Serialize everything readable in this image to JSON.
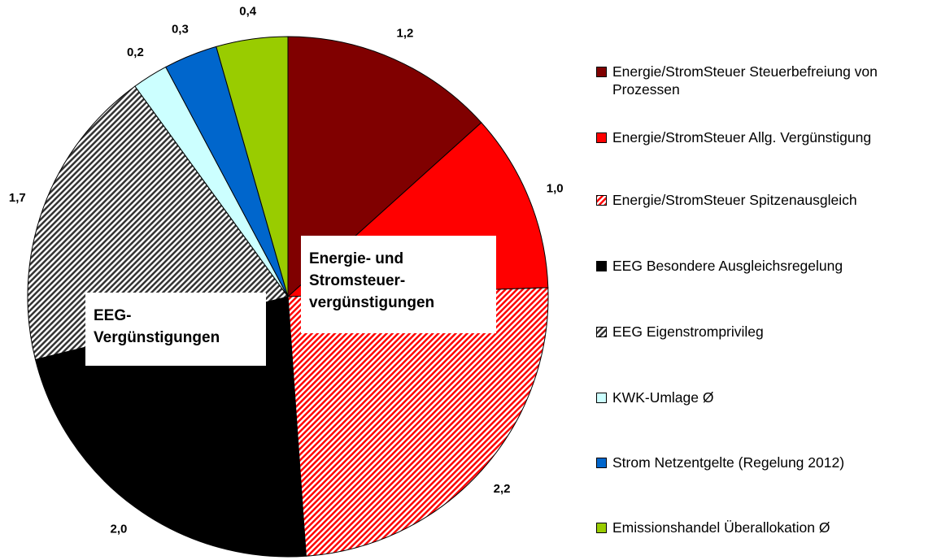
{
  "chart_data": {
    "type": "pie",
    "categories": [
      "Energie/StromSteuer Steuerbefreiung von Prozessen",
      "Energie/StromSteuer Allg. Vergünstigung",
      "Energie/StromSteuer Spitzenausgleich",
      "EEG Besondere Ausgleichsregelung",
      "EEG Eigenstromprivileg",
      "KWK-Umlage Ø",
      "Strom Netzentgelte (Regelung 2012)",
      "Emissionshandel Überallokation Ø"
    ],
    "values": [
      1.2,
      1.0,
      2.2,
      2.0,
      1.7,
      0.2,
      0.3,
      0.4
    ],
    "value_labels": [
      "1,2",
      "1,0",
      "2,2",
      "2,0",
      "1,7",
      "0,2",
      "0,3",
      "0,4"
    ],
    "colors": [
      "#800000",
      "#ff0000",
      "#ff0000",
      "#000000",
      "#333333",
      "#ccffff",
      "#0066cc",
      "#99cc00"
    ],
    "patterns": [
      "solid",
      "solid",
      "hatch",
      "solid",
      "hatch",
      "solid",
      "solid",
      "solid"
    ],
    "annotations": [
      {
        "lines": [
          "Energie- und",
          "Stromsteuer-",
          "vergünstigungen"
        ]
      },
      {
        "lines": [
          "EEG-",
          "Vergünstigungen"
        ]
      }
    ]
  }
}
